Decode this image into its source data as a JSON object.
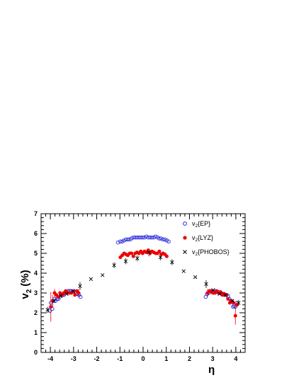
{
  "chart_data": {
    "type": "scatter",
    "xlabel": "η",
    "ylabel_main": "v",
    "ylabel_sub": "2",
    "ylabel_unit": "(%)",
    "xlim": [
      -4.4,
      4.4
    ],
    "ylim": [
      0,
      7
    ],
    "xticks": [
      -4,
      -3,
      -2,
      -1,
      0,
      1,
      2,
      3,
      4
    ],
    "yticks": [
      0,
      1,
      2,
      3,
      4,
      5,
      6,
      7
    ],
    "legend_placement": "top-right",
    "series": [
      {
        "name_main": "v",
        "name_sub": "2",
        "name_rest": "{EP}",
        "marker": "open-circle",
        "color": "#2222dd",
        "x": [
          -4.02,
          -3.98,
          -3.92,
          -3.87,
          -3.82,
          -3.78,
          -3.72,
          -3.66,
          -3.6,
          -3.54,
          -3.48,
          -3.42,
          -3.36,
          -3.3,
          -3.24,
          -3.18,
          -3.12,
          -3.06,
          -3.0,
          -2.94,
          -2.88,
          -2.82,
          -2.76,
          -2.7,
          -1.08,
          -0.98,
          -0.9,
          -0.82,
          -0.74,
          -0.66,
          -0.58,
          -0.5,
          -0.42,
          -0.34,
          -0.26,
          -0.18,
          -0.1,
          -0.02,
          0.06,
          0.14,
          0.22,
          0.3,
          0.38,
          0.46,
          0.54,
          0.62,
          0.7,
          0.78,
          0.86,
          0.94,
          1.02,
          1.1,
          2.7,
          2.76,
          2.82,
          2.88,
          2.94,
          3.0,
          3.06,
          3.12,
          3.18,
          3.24,
          3.3,
          3.36,
          3.42,
          3.48,
          3.54,
          3.6,
          3.66,
          3.72,
          3.78,
          3.84,
          3.88,
          3.92,
          3.98,
          4.04
        ],
        "y": [
          2.1,
          2.5,
          2.2,
          2.6,
          2.7,
          2.6,
          2.7,
          2.7,
          2.8,
          2.9,
          2.9,
          2.9,
          3.0,
          3.05,
          3.1,
          3.1,
          3.1,
          3.05,
          3.1,
          3.05,
          3.0,
          2.95,
          2.9,
          2.8,
          5.55,
          5.6,
          5.6,
          5.65,
          5.7,
          5.7,
          5.7,
          5.75,
          5.8,
          5.8,
          5.8,
          5.8,
          5.8,
          5.8,
          5.8,
          5.85,
          5.8,
          5.8,
          5.8,
          5.8,
          5.85,
          5.8,
          5.75,
          5.75,
          5.7,
          5.7,
          5.65,
          5.6,
          2.8,
          2.95,
          3.0,
          3.1,
          3.05,
          3.05,
          3.05,
          3.1,
          3.05,
          3.05,
          3.0,
          3.0,
          2.95,
          2.95,
          2.9,
          2.9,
          2.85,
          2.7,
          2.6,
          2.55,
          2.3,
          2.35,
          2.3,
          2.5
        ]
      },
      {
        "name_main": "v",
        "name_sub": "2",
        "name_rest": "{LYZ}",
        "marker": "filled-circle",
        "color": "#ee0000",
        "x": [
          -3.98,
          -3.9,
          -3.82,
          -3.74,
          -3.66,
          -3.58,
          -3.5,
          -3.42,
          -3.34,
          -3.26,
          -3.18,
          -3.1,
          -3.02,
          -2.94,
          -2.86,
          -2.78,
          -0.98,
          -0.9,
          -0.82,
          -0.74,
          -0.66,
          -0.58,
          -0.5,
          -0.42,
          -0.34,
          -0.26,
          -0.18,
          -0.1,
          -0.02,
          0.06,
          0.14,
          0.22,
          0.3,
          0.38,
          0.46,
          0.54,
          0.62,
          0.7,
          0.78,
          0.86,
          0.94,
          1.02,
          2.78,
          2.86,
          2.94,
          3.02,
          3.1,
          3.18,
          3.26,
          3.34,
          3.42,
          3.5,
          3.58,
          3.66,
          3.74,
          3.82,
          3.9,
          3.98,
          4.04
        ],
        "y": [
          2.3,
          2.6,
          3.0,
          2.9,
          2.8,
          3.0,
          2.9,
          3.0,
          3.1,
          3.0,
          3.0,
          3.0,
          3.05,
          2.9,
          3.1,
          3.0,
          4.8,
          4.9,
          5.0,
          4.95,
          4.9,
          5.0,
          5.0,
          4.85,
          5.0,
          5.05,
          5.0,
          5.1,
          5.0,
          5.1,
          5.05,
          5.15,
          5.0,
          5.1,
          5.05,
          5.0,
          5.0,
          5.1,
          4.95,
          5.0,
          4.95,
          4.85,
          3.0,
          3.1,
          3.1,
          3.0,
          3.0,
          3.1,
          3.0,
          3.05,
          2.9,
          2.95,
          2.9,
          2.7,
          2.5,
          2.6,
          2.5,
          1.85,
          2.4
        ]
      },
      {
        "name_main": "v",
        "name_sub": "2",
        "name_rest": "{PHOBOS}",
        "marker": "cross",
        "color": "#000000",
        "x": [
          -4.12,
          -3.85,
          -3.55,
          -3.3,
          -3.02,
          -2.72,
          -2.25,
          -1.75,
          -1.25,
          -0.75,
          -0.25,
          0.25,
          0.75,
          1.25,
          1.75,
          2.25,
          2.72,
          3.02,
          3.3,
          3.55,
          3.85,
          4.12
        ],
        "y": [
          2.15,
          2.6,
          2.85,
          2.95,
          3.1,
          3.35,
          3.7,
          3.9,
          4.4,
          4.6,
          4.75,
          5.05,
          4.8,
          4.55,
          4.1,
          3.8,
          3.45,
          3.15,
          2.95,
          2.9,
          2.6,
          2.5
        ]
      }
    ]
  }
}
